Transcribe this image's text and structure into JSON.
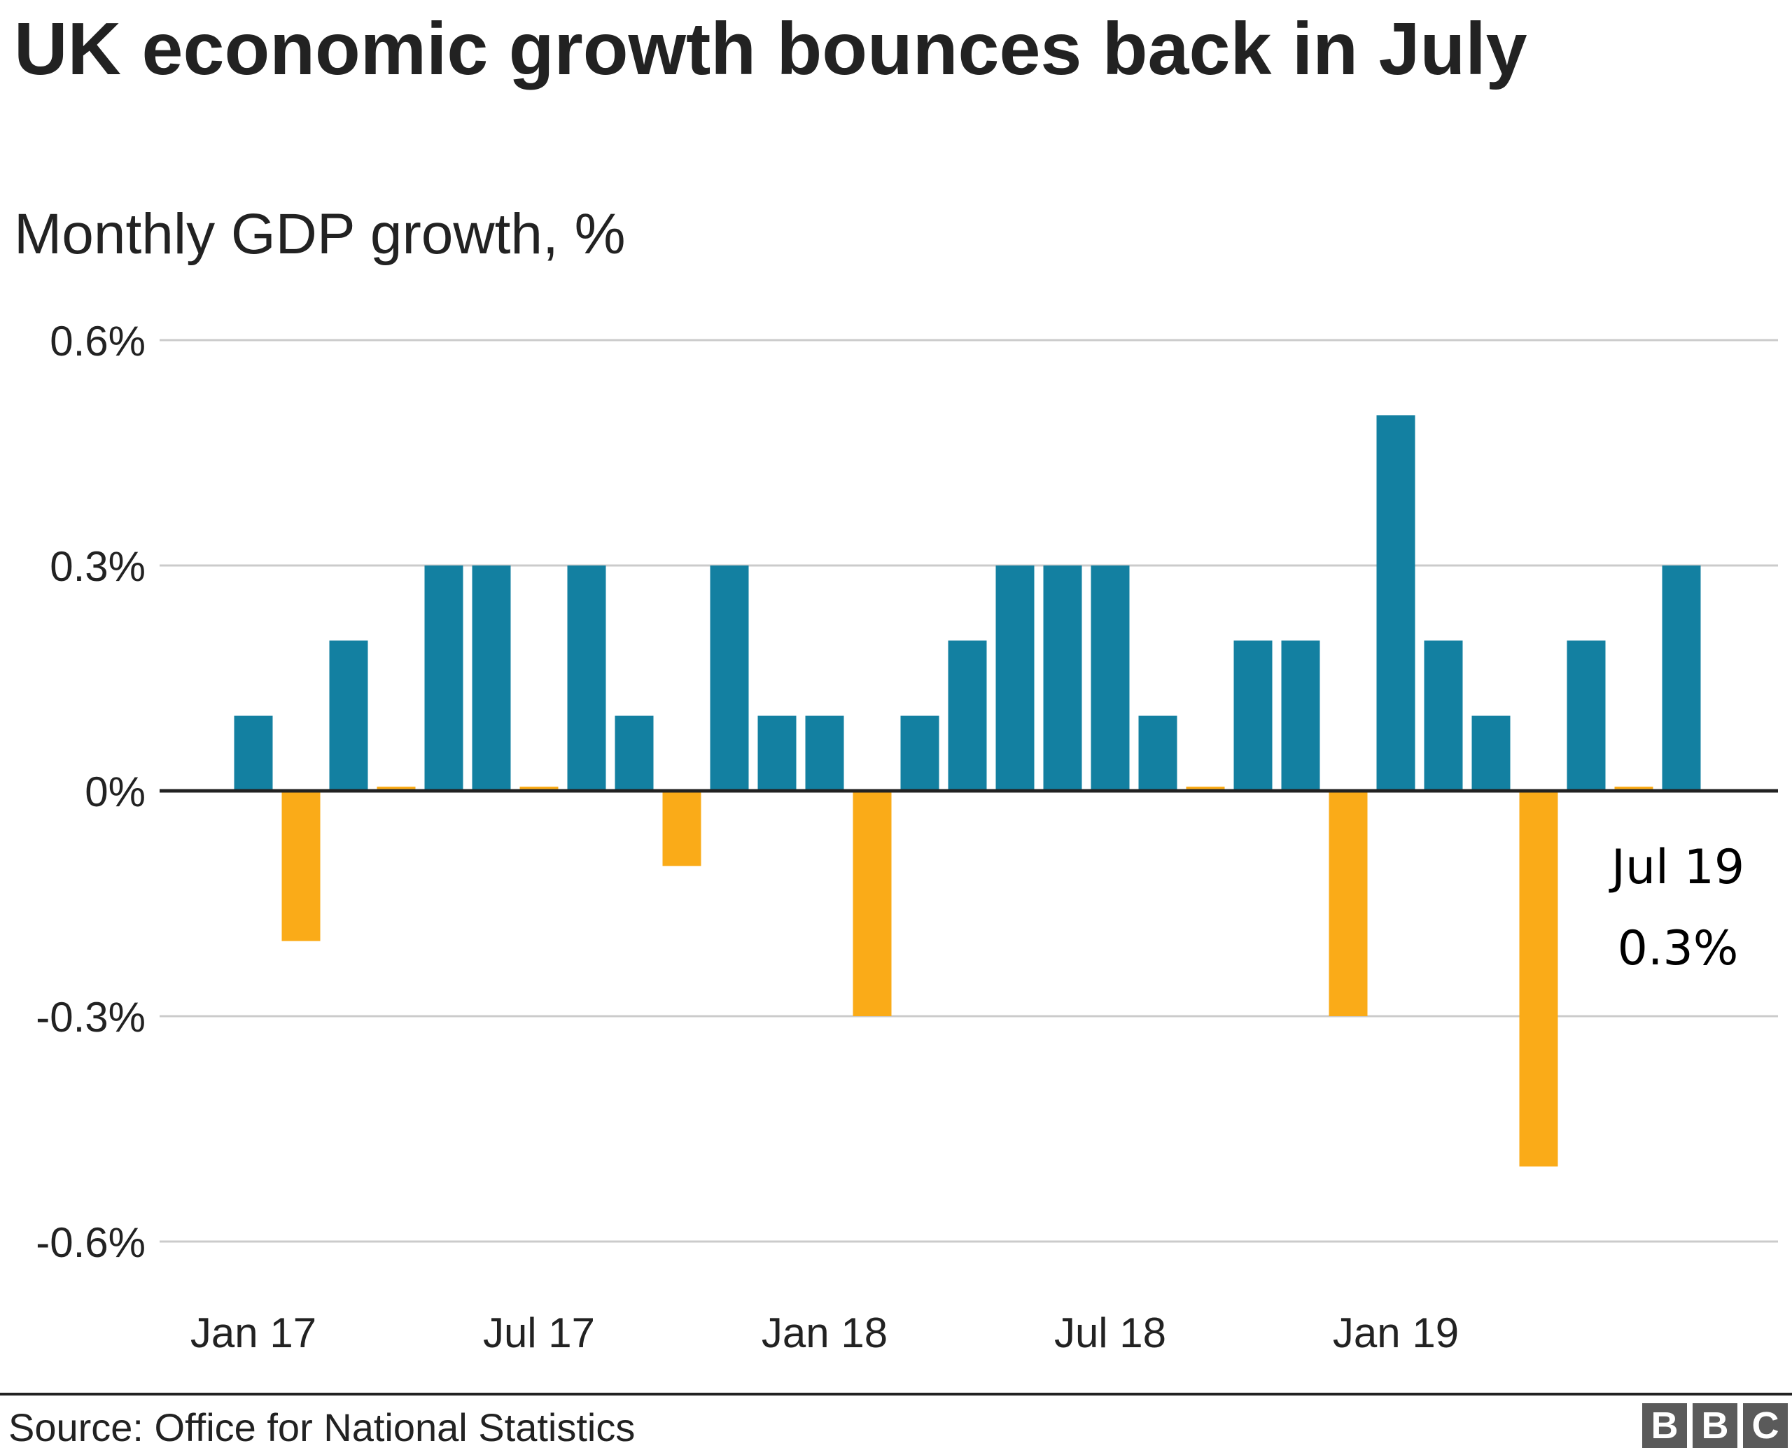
{
  "title": "UK economic growth bounces back in July",
  "subtitle": "Monthly GDP growth, %",
  "source": "Source: Office for National Statistics",
  "logo_letters": [
    "B",
    "B",
    "C"
  ],
  "colors": {
    "positive": "#1380A1",
    "negative": "#FAAB18",
    "grid": "#cbcbcb",
    "zero_line": "#222222",
    "text": "#222222",
    "logo": "#5a5a5a"
  },
  "chart_data": {
    "type": "bar",
    "title": "UK economic growth bounces back in July",
    "subtitle": "Monthly GDP growth, %",
    "ylim": [
      -0.6,
      0.6
    ],
    "yticks": [
      0.6,
      0.3,
      0,
      -0.3,
      -0.6
    ],
    "ytick_labels": [
      "0.6%",
      "0.3%",
      "0%",
      "-0.3%",
      "-0.6%"
    ],
    "xtick_labels": [
      "Jan 17",
      "Jul 17",
      "Jan 18",
      "Jul 18",
      "Jan 19"
    ],
    "xtick_months": [
      "Jan 17",
      "Jul 17",
      "Jan 18",
      "Jul 18",
      "Jan 19"
    ],
    "grid": true,
    "legend": "none",
    "categories": [
      "Jan 17",
      "Feb 17",
      "Mar 17",
      "Apr 17",
      "May 17",
      "Jun 17",
      "Jul 17",
      "Aug 17",
      "Sep 17",
      "Oct 17",
      "Nov 17",
      "Dec 17",
      "Jan 18",
      "Feb 18",
      "Mar 18",
      "Apr 18",
      "May 18",
      "Jun 18",
      "Jul 18",
      "Aug 18",
      "Sep 18",
      "Oct 18",
      "Nov 18",
      "Dec 18",
      "Jan 19",
      "Feb 19",
      "Mar 19",
      "Apr 19",
      "May 19",
      "Jun 19",
      "Jul 19"
    ],
    "values": [
      0.1,
      -0.2,
      0.2,
      0.0,
      0.3,
      0.3,
      0.0,
      0.3,
      0.1,
      -0.1,
      0.3,
      0.1,
      0.1,
      -0.3,
      0.1,
      0.2,
      0.3,
      0.3,
      0.3,
      0.1,
      0.0,
      0.2,
      0.2,
      -0.3,
      0.5,
      0.2,
      0.1,
      -0.5,
      0.2,
      0.0,
      0.3
    ],
    "annotation": {
      "month": "Jul 19",
      "label_line1": "Jul 19",
      "label_line2": "0.3%"
    }
  }
}
